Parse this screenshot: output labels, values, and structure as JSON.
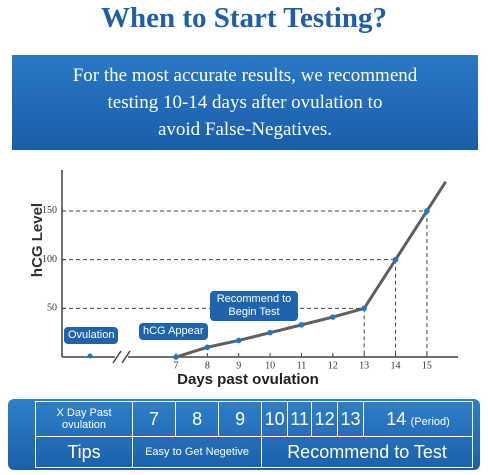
{
  "header": {
    "title": "When to Start Testing?",
    "banner": [
      "For the most accurate results, we recommend",
      "testing 10-14 days after ovulation to",
      "avoid False-Negatives."
    ]
  },
  "chart_data": {
    "type": "line",
    "y_label": "hCG Level",
    "x_label": "Days past ovulation",
    "x": [
      7,
      8,
      9,
      10,
      11,
      12,
      13,
      14,
      15,
      15.6
    ],
    "values": [
      0,
      10,
      17,
      25,
      33,
      41,
      50,
      100,
      150,
      180
    ],
    "color": "#5f5f5f",
    "marker_color": "#1f78c8",
    "xlim": [
      7,
      15.8
    ],
    "ylim": [
      0,
      190
    ],
    "xticks": [
      7,
      8,
      9,
      10,
      11,
      12,
      13,
      14,
      15
    ],
    "yticks": [
      50,
      100,
      150
    ],
    "annotations": [
      "Ovulation",
      "hCG Appear",
      "Recommend to Begin Test"
    ]
  },
  "table": {
    "rows": [
      [
        "X Day Past ovulation",
        "7",
        "8",
        "9",
        "10",
        "11",
        "12",
        "13",
        "14",
        "(Period)"
      ],
      [
        "Tips",
        "Easy to Get Negetive",
        "Recommend to Test"
      ]
    ]
  }
}
